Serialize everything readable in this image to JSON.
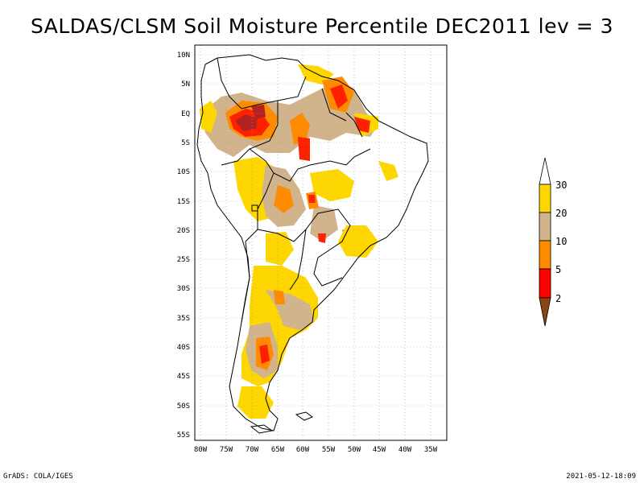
{
  "title": "SALDAS/CLSM Soil Moisture Percentile DEC2011 lev = 3",
  "footer": {
    "left": "GrADS: COLA/IGES",
    "right": "2021-05-12-18:09"
  },
  "map": {
    "lat_labels": [
      "10N",
      "5N",
      "EQ",
      "5S",
      "10S",
      "15S",
      "20S",
      "25S",
      "30S",
      "35S",
      "40S",
      "45S",
      "50S",
      "55S"
    ],
    "lon_labels": [
      "80W",
      "75W",
      "70W",
      "65W",
      "60W",
      "55W",
      "50W",
      "45W",
      "40W",
      "35W"
    ],
    "lat_range": [
      -56,
      12
    ],
    "lon_range": [
      -81,
      -33
    ]
  },
  "legend": {
    "levels": [
      "30",
      "20",
      "10",
      "5",
      "2"
    ],
    "colors": {
      "above30": "#ffffff",
      "20-30": "#ffd700",
      "10-20": "#d2b48c",
      "5-10": "#ff8c00",
      "2-5": "#ff0000",
      "below2": "#8b4513"
    }
  },
  "colors": {
    "dark_red": "#b22222",
    "red": "#ff2000",
    "orange": "#ff8c00",
    "tan": "#d2b48c",
    "gold": "#ffd700"
  }
}
